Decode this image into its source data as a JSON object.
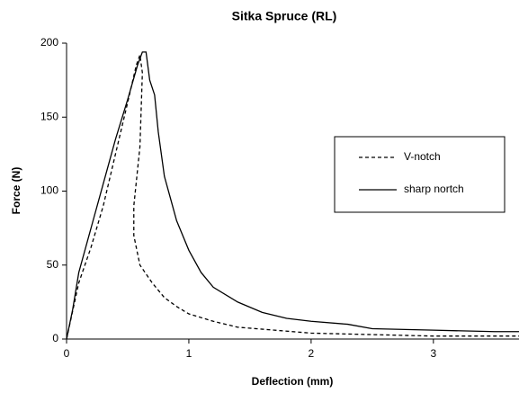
{
  "chart_data": {
    "type": "line",
    "title": "Sitka Spruce (RL)",
    "x_label": "Deflection (mm)",
    "y_label": "Force (N)",
    "xlim": [
      0,
      3.7
    ],
    "xticks": [
      0,
      1,
      2,
      3
    ],
    "ylim": [
      0,
      200
    ],
    "yticks": [
      0,
      50,
      100,
      150,
      200
    ],
    "grid": false,
    "legend": "right",
    "series": [
      {
        "name": "V-notch",
        "color": "#000000",
        "dash": "dashed",
        "x": [
          0,
          0.1,
          0.2,
          0.3,
          0.4,
          0.5,
          0.57,
          0.6,
          0.62,
          0.6,
          0.55,
          0.55,
          0.6,
          0.7,
          0.8,
          0.9,
          1.0,
          1.2,
          1.4,
          1.7,
          2.0,
          2.5,
          3.0,
          3.7
        ],
        "values": [
          0,
          38,
          62,
          90,
          125,
          160,
          185,
          192,
          180,
          130,
          90,
          70,
          50,
          38,
          28,
          22,
          17,
          12,
          8,
          6,
          4,
          3,
          2,
          2
        ]
      },
      {
        "name": "sharp nortch",
        "color": "#000000",
        "dash": "solid",
        "x": [
          0,
          0.05,
          0.1,
          0.2,
          0.3,
          0.4,
          0.5,
          0.58,
          0.62,
          0.65,
          0.68,
          0.72,
          0.75,
          0.8,
          0.85,
          0.9,
          1.0,
          1.1,
          1.2,
          1.4,
          1.6,
          1.8,
          2.0,
          2.3,
          2.5,
          3.0,
          3.5,
          3.7
        ],
        "values": [
          0,
          20,
          45,
          75,
          105,
          135,
          162,
          185,
          194,
          194,
          175,
          165,
          140,
          110,
          95,
          80,
          60,
          45,
          35,
          25,
          18,
          14,
          12,
          10,
          7,
          6,
          5,
          5
        ]
      }
    ]
  }
}
